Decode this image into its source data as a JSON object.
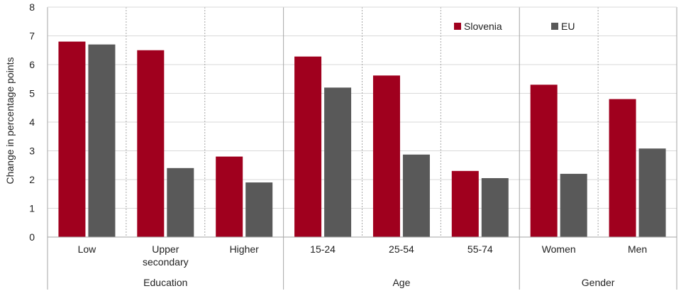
{
  "chart_data": {
    "type": "bar",
    "ylabel": "Change in percentage points",
    "ylim": [
      0,
      8
    ],
    "yticks": [
      0,
      1,
      2,
      3,
      4,
      5,
      6,
      7,
      8
    ],
    "grid": true,
    "legend_position": "top-right",
    "categories": [
      "Low",
      "Upper secondary",
      "Higher",
      "15-24",
      "25-54",
      "55-74",
      "Women",
      "Men"
    ],
    "category_lines": [
      [
        "Low"
      ],
      [
        "Upper",
        "secondary"
      ],
      [
        "Higher"
      ],
      [
        "15-24"
      ],
      [
        "25-54"
      ],
      [
        "55-74"
      ],
      [
        "Women"
      ],
      [
        "Men"
      ]
    ],
    "groups": [
      {
        "label": "Education",
        "size": 3
      },
      {
        "label": "Age",
        "size": 3
      },
      {
        "label": "Gender",
        "size": 2
      }
    ],
    "series": [
      {
        "name": "Slovenia",
        "color": "#a0001e",
        "values": [
          6.8,
          6.5,
          2.8,
          6.28,
          5.62,
          2.3,
          5.3,
          4.8
        ]
      },
      {
        "name": "EU",
        "color": "#595959",
        "values": [
          6.7,
          2.4,
          1.9,
          5.2,
          2.87,
          2.05,
          2.2,
          3.08
        ]
      }
    ]
  }
}
